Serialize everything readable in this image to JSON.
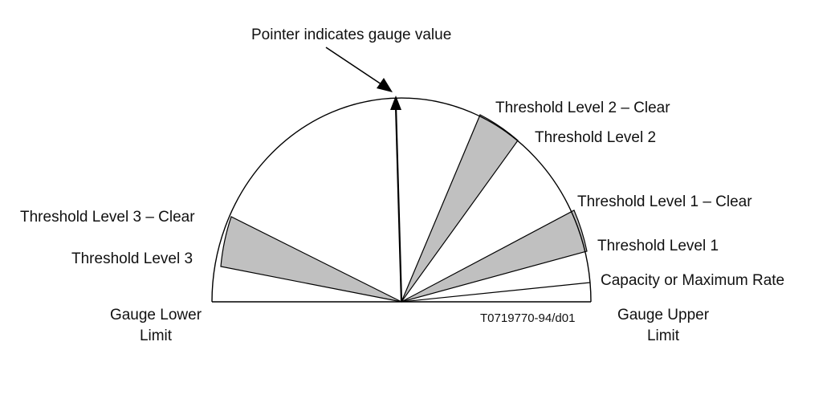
{
  "labels": {
    "pointer": "Pointer indicates gauge value",
    "threshold_2_clear": "Threshold Level 2 – Clear",
    "threshold_2": "Threshold Level 2",
    "threshold_1_clear": "Threshold Level 1 – Clear",
    "threshold_1": "Threshold Level 1",
    "capacity": "Capacity or Maximum Rate",
    "threshold_3_clear": "Threshold Level 3 – Clear",
    "threshold_3": "Threshold Level 3",
    "lower_limit_line1": "Gauge Lower",
    "lower_limit_line2": "Limit",
    "upper_limit_line1": "Gauge Upper",
    "upper_limit_line2": "Limit",
    "figure_code": "T0719770-94/d01"
  },
  "colors": {
    "band_fill": "#c0c0c0",
    "stroke": "#000000"
  }
}
